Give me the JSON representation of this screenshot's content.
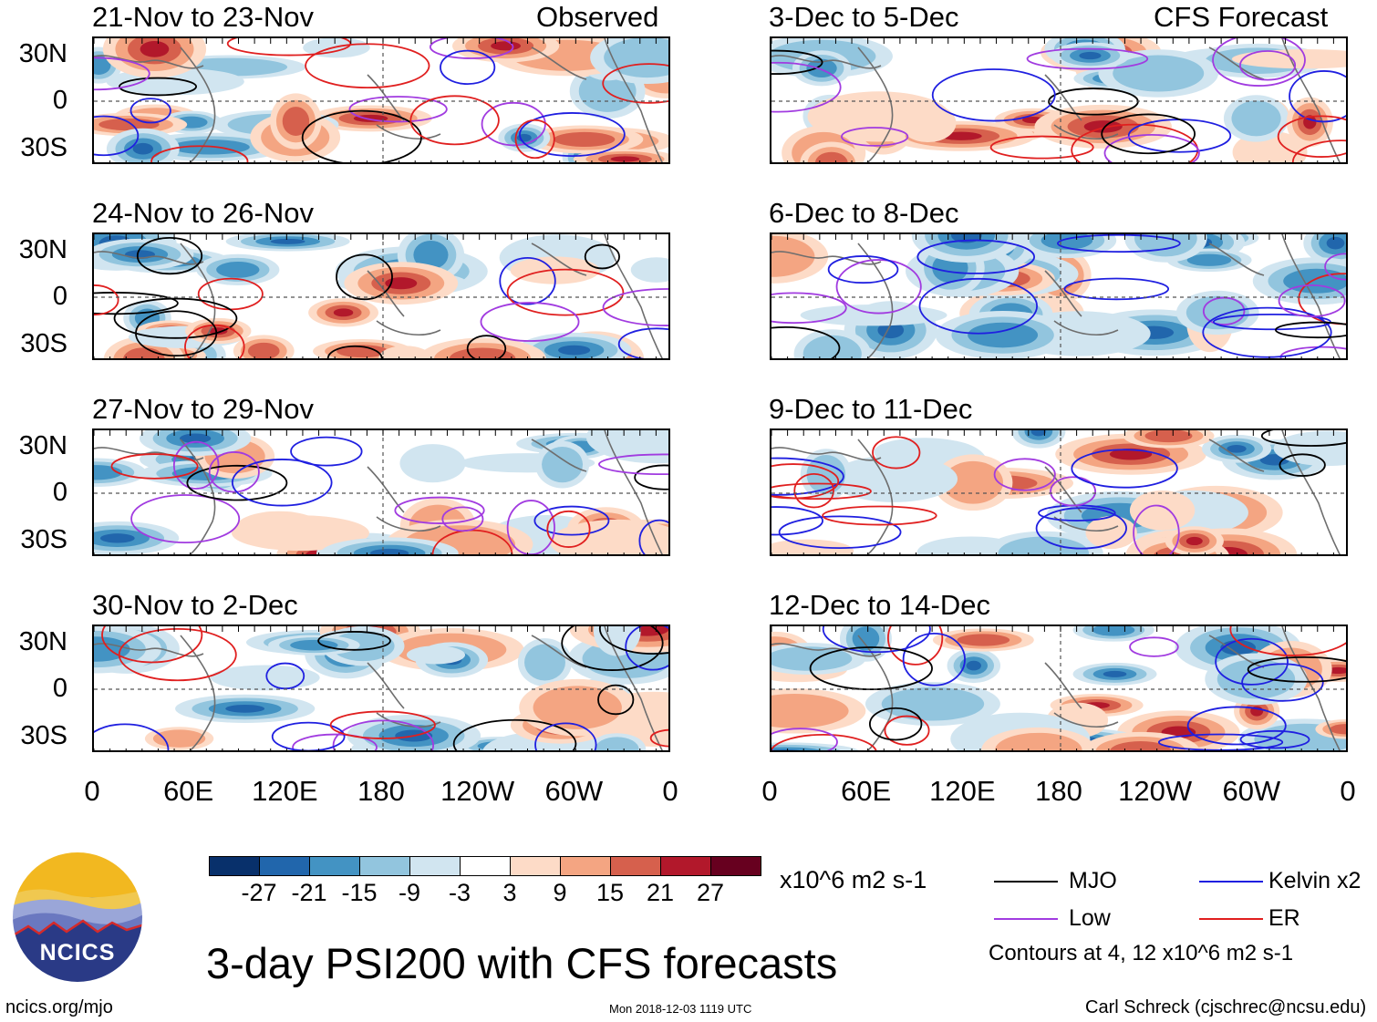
{
  "header": {
    "observed_label": "Observed",
    "forecast_label": "CFS Forecast"
  },
  "panels_left": [
    {
      "title": "21-Nov to 23-Nov"
    },
    {
      "title": "24-Nov to 26-Nov"
    },
    {
      "title": "27-Nov to 29-Nov"
    },
    {
      "title": "30-Nov to 2-Dec"
    }
  ],
  "panels_right": [
    {
      "title": "3-Dec to 5-Dec"
    },
    {
      "title": "6-Dec to 8-Dec"
    },
    {
      "title": "9-Dec to 11-Dec"
    },
    {
      "title": "12-Dec to 14-Dec"
    }
  ],
  "latitude_labels": [
    "30N",
    "0",
    "30S"
  ],
  "longitude_labels": [
    "0",
    "60E",
    "120E",
    "180",
    "120W",
    "60W",
    "0"
  ],
  "colorbar": {
    "colors": [
      "#08306b",
      "#2166ac",
      "#4393c3",
      "#92c5de",
      "#d1e5f0",
      "#ffffff",
      "#fddbc7",
      "#f4a582",
      "#d6604d",
      "#b2182b",
      "#67001f"
    ],
    "tick_labels": [
      "-27",
      "-21",
      "-15",
      "-9",
      "-3",
      "3",
      "9",
      "15",
      "21",
      "27"
    ],
    "units": "x10^6 m2 s-1"
  },
  "legend": {
    "items": [
      {
        "label": "MJO",
        "color": "#000000"
      },
      {
        "label": "Kelvin x2",
        "color": "#1f1fe0"
      },
      {
        "label": "Low",
        "color": "#a13be0"
      },
      {
        "label": "ER",
        "color": "#e01f1f"
      }
    ],
    "note": "Contours at 4, 12 x10^6 m2 s-1"
  },
  "main_title": "3-day PSI200 with CFS forecasts",
  "logo": {
    "text": "NCICS"
  },
  "footer": {
    "url": "ncics.org/mjo",
    "timestamp": "Mon 2018-12-03 1119 UTC",
    "credit": "Carl Schreck (cjschrec@ncsu.edu)"
  }
}
